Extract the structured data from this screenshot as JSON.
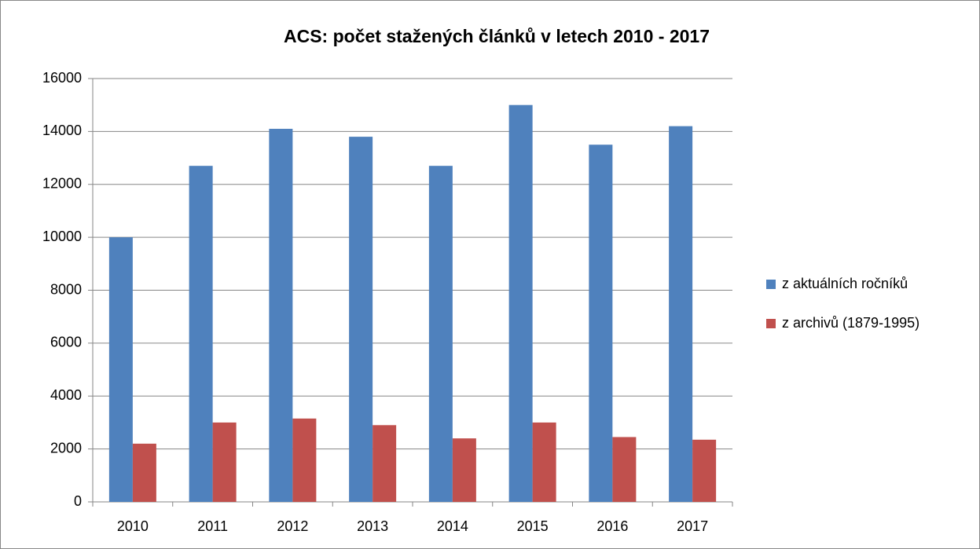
{
  "chart_data": {
    "type": "bar",
    "title": "ACS: počet stažených článků v letech 2010 - 2017",
    "categories": [
      "2010",
      "2011",
      "2012",
      "2013",
      "2014",
      "2015",
      "2016",
      "2017"
    ],
    "series": [
      {
        "name": "z aktuálních ročníků",
        "color": "#4f81bd",
        "values": [
          10000,
          12700,
          14100,
          13800,
          12700,
          15000,
          13500,
          14200
        ]
      },
      {
        "name": "z archivů (1879-1995)",
        "color": "#c0504d",
        "values": [
          2200,
          3000,
          3150,
          2900,
          2400,
          3000,
          2450,
          2350
        ]
      }
    ],
    "ylim": [
      0,
      16000
    ],
    "yticks": [
      0,
      2000,
      4000,
      6000,
      8000,
      10000,
      12000,
      14000,
      16000
    ],
    "grid": true,
    "legend": "right"
  }
}
